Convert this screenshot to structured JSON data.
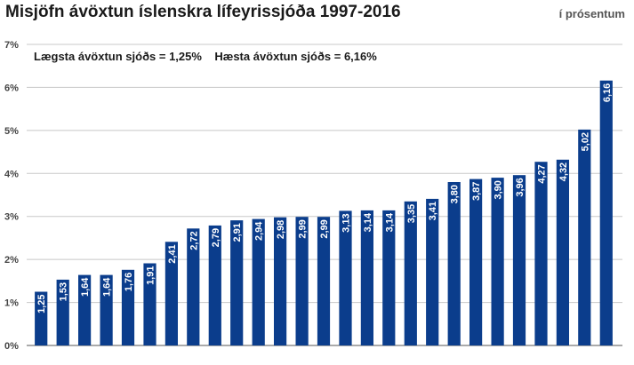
{
  "header": {
    "title": "Misjöfn ávöxtun íslenskra lífeyrissjóða 1997-2016",
    "unit": "í prósentum"
  },
  "chart_data": {
    "type": "bar",
    "title": "Misjöfn ávöxtun íslenskra lífeyrissjóða 1997-2016",
    "subtitle": "í prósentum",
    "annotation": "Lægsta ávöxtun sjóðs = 1,25%    Hæsta ávöxtun sjóðs = 6,16%",
    "ylim": [
      0,
      7
    ],
    "yticks": [
      0,
      1,
      2,
      3,
      4,
      5,
      6,
      7
    ],
    "ytick_labels": [
      "0%",
      "1%",
      "2%",
      "3%",
      "4%",
      "5%",
      "6%",
      "7%"
    ],
    "grid": true,
    "values": [
      1.25,
      1.53,
      1.64,
      1.64,
      1.76,
      1.91,
      2.41,
      2.72,
      2.79,
      2.91,
      2.94,
      2.98,
      2.99,
      2.99,
      3.13,
      3.14,
      3.14,
      3.35,
      3.41,
      3.8,
      3.87,
      3.9,
      3.96,
      4.27,
      4.32,
      5.02,
      6.16
    ],
    "value_labels": [
      "1,25",
      "1,53",
      "1,64",
      "1,64",
      "1,76",
      "1,91",
      "2,41",
      "2,72",
      "2,79",
      "2,91",
      "2,94",
      "2,98",
      "2,99",
      "2,99",
      "3,13",
      "3,14",
      "3,14",
      "3,35",
      "3,41",
      "3,80",
      "3,87",
      "3,90",
      "3,96",
      "4,27",
      "4,32",
      "5,02",
      "6,16"
    ],
    "bar_color": "#0b3d8c",
    "grid_color": "#c8c8c8"
  }
}
